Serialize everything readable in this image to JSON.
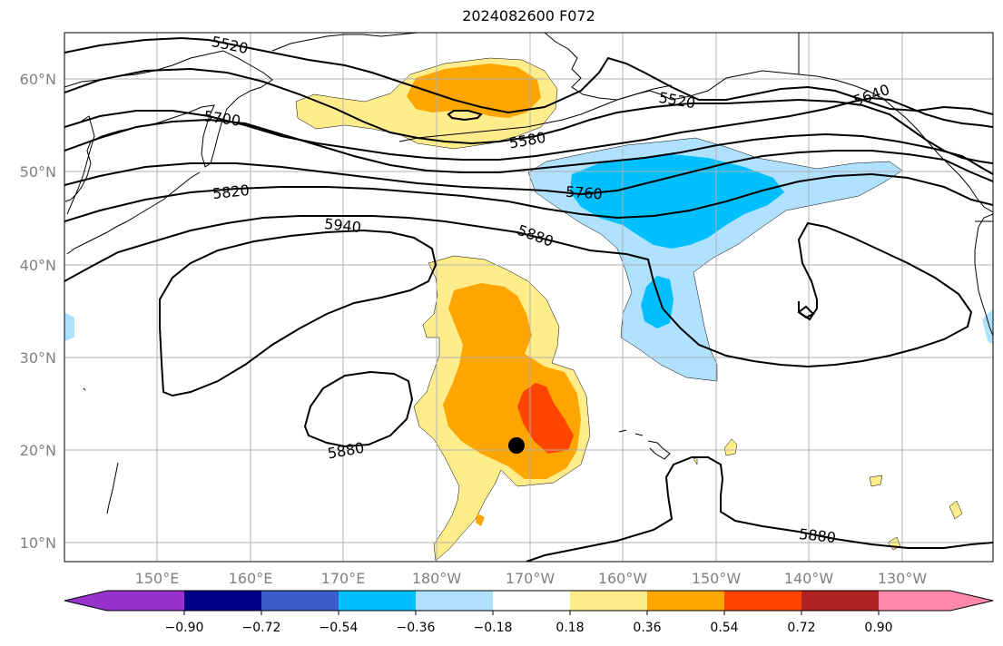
{
  "title": "2024082600 F072",
  "map": {
    "lon_ticks": [
      "150°E",
      "160°E",
      "170°E",
      "180°W",
      "170°W",
      "160°W",
      "150°W",
      "140°W",
      "130°W"
    ],
    "lat_ticks": [
      "10°N",
      "20°N",
      "30°N",
      "40°N",
      "50°N",
      "60°N"
    ],
    "grid": true,
    "contour_labels": [
      "5520",
      "5580",
      "5520",
      "5640",
      "5700",
      "5760",
      "5820",
      "5880",
      "5940",
      "5880",
      "5880"
    ],
    "marker": {
      "lon": "-171.4",
      "lat": "20.4",
      "color": "#000000"
    }
  },
  "colorbar": {
    "ticks": [
      "−0.90",
      "−0.72",
      "−0.54",
      "−0.36",
      "−0.18",
      "0.18",
      "0.36",
      "0.54",
      "0.72",
      "0.90"
    ],
    "colors": [
      "#9932cc",
      "#00008b",
      "#3a5fcd",
      "#00bfff",
      "#b0e2ff",
      "#ffffff",
      "#ffec8b",
      "#ffa500",
      "#ff4500",
      "#b22222",
      "#ff88aa"
    ],
    "extend": "both"
  },
  "colors": {
    "light_yellow": "#ffec8b",
    "orange": "#ffa500",
    "red_orange": "#ff4500",
    "light_blue": "#b0e2ff",
    "blue": "#00bfff"
  }
}
